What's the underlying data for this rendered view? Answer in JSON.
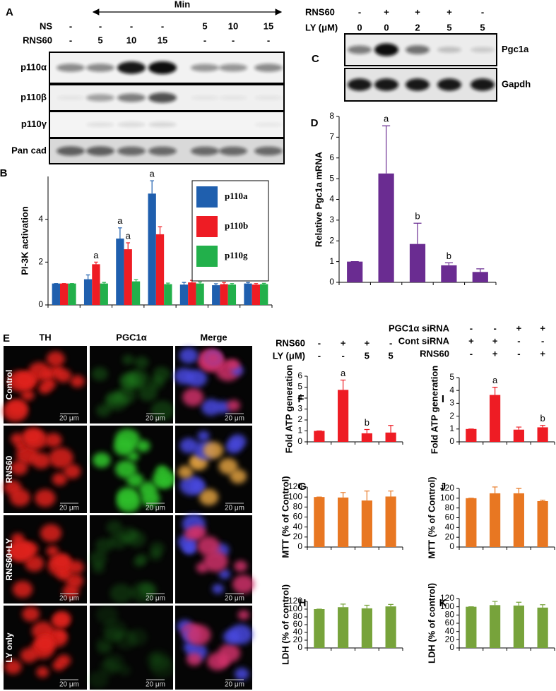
{
  "blot_a": {
    "panel": "A",
    "time_label": "Min",
    "conditions": [
      {
        "label": "NS",
        "values": [
          "-",
          "-",
          "-",
          "-",
          5,
          10,
          15
        ]
      },
      {
        "label": "RNS60",
        "values": [
          "-",
          5,
          10,
          15,
          "-",
          "-",
          "-"
        ]
      }
    ],
    "rows": [
      "p110α",
      "p110β",
      "p110γ",
      "Pan cad"
    ]
  },
  "blot_c": {
    "panel": "C",
    "conditions": [
      {
        "label": "RNS60",
        "values": [
          "-",
          "+",
          "+",
          "+",
          "-"
        ]
      },
      {
        "label": "LY (μM)",
        "values": [
          0,
          0,
          2,
          5,
          5
        ]
      }
    ],
    "rows": [
      "Pgc1a",
      "Gapdh"
    ]
  },
  "micrographs": {
    "panel": "E",
    "columns": [
      "TH",
      "PGC1α",
      "Merge"
    ],
    "rows": [
      "Control",
      "RNS60",
      "RNS60+LY",
      "LY only"
    ],
    "scale_bar": "20 μm"
  },
  "chart_data": [
    {
      "type": "bar",
      "panel": "B",
      "y_label": "PI-3K activation",
      "ylim": [
        0,
        6
      ],
      "yticks": [
        0,
        2,
        4
      ],
      "legend": "upper right",
      "series": [
        {
          "name": "p110a",
          "color": "#1f5fae",
          "values": [
            1,
            1.2,
            3.1,
            5.2,
            0.95,
            0.92,
            1.0
          ],
          "errors": [
            0,
            0.2,
            0.5,
            0.6,
            0.1,
            0.07,
            0.05
          ],
          "letters": [
            null,
            null,
            "a",
            "a",
            null,
            null,
            null
          ]
        },
        {
          "name": "p110b",
          "color": "#ee1c24",
          "values": [
            1,
            1.9,
            2.6,
            3.3,
            1.05,
            0.97,
            0.95
          ],
          "errors": [
            0,
            0.1,
            0.3,
            0.35,
            0.1,
            0.08,
            0.05
          ],
          "letters": [
            null,
            "a",
            "a",
            null,
            null,
            null,
            null
          ]
        },
        {
          "name": "p110g",
          "color": "#22b04b",
          "values": [
            1,
            1.0,
            1.1,
            0.97,
            1.0,
            0.95,
            0.97
          ],
          "errors": [
            0,
            0.05,
            0.08,
            0.05,
            0.07,
            0.05,
            0.04
          ],
          "letters": [
            null,
            null,
            null,
            null,
            null,
            null,
            null
          ]
        }
      ]
    },
    {
      "type": "bar",
      "panel": "D",
      "y_label": "Relative Pgc1a mRNA",
      "ylim": [
        0,
        8
      ],
      "yticks": [
        0,
        1,
        2,
        3,
        4,
        5,
        6,
        7,
        8
      ],
      "color": "#6a2c91",
      "values": [
        1,
        5.25,
        1.85,
        0.82,
        0.5
      ],
      "errors": [
        0,
        2.3,
        1.0,
        0.12,
        0.15
      ],
      "letters": [
        null,
        "a",
        "b",
        "b",
        null
      ]
    },
    {
      "type": "bar",
      "panel": "F",
      "y_label": "Fold ATP generation",
      "ylim": [
        0,
        6
      ],
      "yticks": [
        0,
        1,
        2,
        3,
        4,
        5,
        6
      ],
      "color": "#ee1c24",
      "conditions": [
        {
          "label": "RNS60",
          "values": [
            "-",
            "+",
            "+",
            "-"
          ]
        },
        {
          "label": "LY (μM)",
          "values": [
            "-",
            "-",
            5,
            5
          ]
        }
      ],
      "values": [
        1,
        4.75,
        0.78,
        0.85
      ],
      "errors": [
        0,
        0.9,
        0.35,
        0.65
      ],
      "letters": [
        null,
        "a",
        "b",
        null
      ]
    },
    {
      "type": "bar",
      "panel": "G",
      "y_label": "MTT (% of Control)",
      "ylim": [
        0,
        120
      ],
      "yticks": [
        0,
        20,
        40,
        60,
        80,
        100,
        120
      ],
      "color": "#e87722",
      "values": [
        100,
        99,
        93,
        101
      ],
      "errors": [
        0,
        10,
        19,
        11
      ]
    },
    {
      "type": "bar",
      "panel": "H",
      "y_label": "LDH   (% of control)",
      "ylim": [
        0,
        120
      ],
      "yticks": [
        0,
        20,
        40,
        60,
        80,
        100,
        120
      ],
      "color": "#77a33b",
      "values": [
        100,
        105,
        102,
        107
      ],
      "errors": [
        0,
        8,
        8,
        5
      ]
    },
    {
      "type": "bar",
      "panel": "I",
      "y_label": "Fold ATP generation",
      "ylim": [
        0,
        5
      ],
      "yticks": [
        0,
        1,
        2,
        3,
        4,
        5
      ],
      "color": "#ee1c24",
      "conditions": [
        {
          "label": "PGC1α siRNA",
          "values": [
            "-",
            "-",
            "+",
            "+"
          ]
        },
        {
          "label": "Cont siRNA",
          "values": [
            "+",
            "+",
            "-",
            "-"
          ]
        },
        {
          "label": "RNS60",
          "values": [
            "-",
            "+",
            "-",
            "+"
          ]
        }
      ],
      "values": [
        1,
        3.65,
        0.95,
        1.13
      ],
      "errors": [
        0,
        0.6,
        0.2,
        0.15
      ],
      "letters": [
        null,
        "a",
        null,
        "b"
      ]
    },
    {
      "type": "bar",
      "panel": "J",
      "y_label": "MTT (% of Control)",
      "ylim": [
        0,
        120
      ],
      "yticks": [
        0,
        20,
        40,
        60,
        80,
        100,
        120
      ],
      "color": "#e87722",
      "values": [
        100,
        110,
        110,
        94
      ],
      "errors": [
        0,
        13,
        10,
        2
      ]
    },
    {
      "type": "bar",
      "panel": "K",
      "y_label": "LDH   (% of control)",
      "ylim": [
        0,
        120
      ],
      "yticks": [
        0,
        20,
        40,
        60,
        80,
        100,
        120
      ],
      "color": "#77a33b",
      "values": [
        100,
        104,
        103,
        98
      ],
      "errors": [
        0,
        9,
        8,
        7
      ]
    }
  ]
}
